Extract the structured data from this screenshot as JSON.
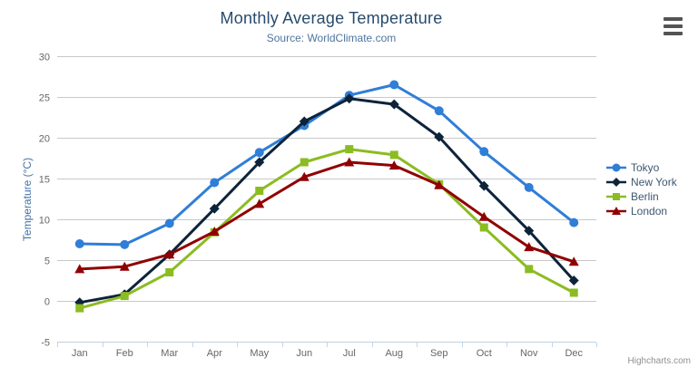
{
  "chart_data": {
    "type": "line",
    "title": "Monthly Average Temperature",
    "subtitle": "Source: WorldClimate.com",
    "categories": [
      "Jan",
      "Feb",
      "Mar",
      "Apr",
      "May",
      "Jun",
      "Jul",
      "Aug",
      "Sep",
      "Oct",
      "Nov",
      "Dec"
    ],
    "xlabel": "",
    "ylabel": "Temperature (°C)",
    "ylim": [
      -5,
      30
    ],
    "ytick_interval": 5,
    "yticks": [
      -5,
      0,
      5,
      10,
      15,
      20,
      25,
      30
    ],
    "grid": true,
    "legend_position": "right",
    "series": [
      {
        "name": "Tokyo",
        "color": "#2f7ed8",
        "marker": "circle",
        "values": [
          7.0,
          6.9,
          9.5,
          14.5,
          18.2,
          21.5,
          25.2,
          26.5,
          23.3,
          18.3,
          13.9,
          9.6
        ]
      },
      {
        "name": "New York",
        "color": "#0d233a",
        "marker": "diamond",
        "values": [
          -0.2,
          0.8,
          5.7,
          11.3,
          17.0,
          22.0,
          24.8,
          24.1,
          20.1,
          14.1,
          8.6,
          2.5
        ]
      },
      {
        "name": "Berlin",
        "color": "#8bbc21",
        "marker": "square",
        "values": [
          -0.9,
          0.6,
          3.5,
          8.4,
          13.5,
          17.0,
          18.6,
          17.9,
          14.3,
          9.0,
          3.9,
          1.0
        ]
      },
      {
        "name": "London",
        "color": "#910000",
        "marker": "triangle",
        "values": [
          3.9,
          4.2,
          5.7,
          8.5,
          11.9,
          15.2,
          17.0,
          16.6,
          14.2,
          10.3,
          6.6,
          4.8
        ]
      }
    ],
    "credits": "Highcharts.com",
    "palette": {
      "title_color": "#274b6d",
      "subtitle_color": "#4d759e",
      "ylabel_color": "#4572a7",
      "axis_label_color": "#666666",
      "grid_color": "#c8c8c8",
      "axis_line_color": "#c0d0e0",
      "tick_color": "#c0d6eb",
      "legend_text_color": "#3e576f",
      "credits_color": "#909090",
      "burger_color": "#545454"
    }
  }
}
